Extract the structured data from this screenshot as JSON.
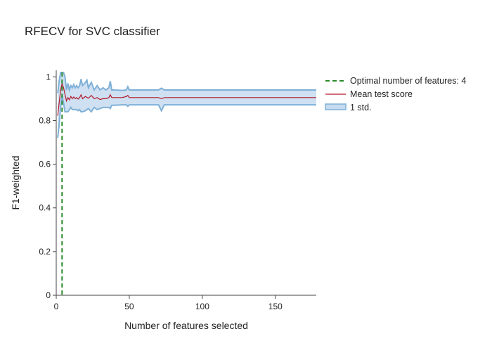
{
  "chart_data": {
    "type": "line",
    "title": "RFECV for SVC classifier",
    "xlabel": "Number of features selected",
    "ylabel": "F1-weighted",
    "xlim": [
      0,
      178
    ],
    "ylim": [
      0,
      1.03
    ],
    "xticks": [
      0,
      50,
      100,
      150
    ],
    "yticks": [
      0,
      0.2,
      0.4,
      0.6,
      0.8,
      1
    ],
    "grid": false,
    "legend_position": "top-right outside",
    "optimal_n_features": 4,
    "series": [
      {
        "name": "Mean test score",
        "color": "#b2182b",
        "points": [
          [
            1,
            0.822
          ],
          [
            2,
            0.88
          ],
          [
            3,
            0.94
          ],
          [
            4,
            0.968
          ],
          [
            5,
            0.95
          ],
          [
            6,
            0.92
          ],
          [
            7,
            0.89
          ],
          [
            8,
            0.905
          ],
          [
            9,
            0.895
          ],
          [
            10,
            0.91
          ],
          [
            11,
            0.9
          ],
          [
            12,
            0.908
          ],
          [
            13,
            0.9
          ],
          [
            14,
            0.905
          ],
          [
            15,
            0.898
          ],
          [
            16,
            0.905
          ],
          [
            17,
            0.918
          ],
          [
            18,
            0.9
          ],
          [
            20,
            0.91
          ],
          [
            22,
            0.902
          ],
          [
            24,
            0.915
          ],
          [
            26,
            0.9
          ],
          [
            28,
            0.905
          ],
          [
            30,
            0.896
          ],
          [
            32,
            0.9
          ],
          [
            34,
            0.9
          ],
          [
            36,
            0.905
          ],
          [
            37,
            0.918
          ],
          [
            38,
            0.905
          ],
          [
            40,
            0.905
          ],
          [
            45,
            0.905
          ],
          [
            48,
            0.91
          ],
          [
            49,
            0.915
          ],
          [
            50,
            0.905
          ],
          [
            60,
            0.905
          ],
          [
            70,
            0.905
          ],
          [
            72,
            0.9
          ],
          [
            74,
            0.905
          ],
          [
            100,
            0.905
          ],
          [
            150,
            0.905
          ],
          [
            178,
            0.905
          ]
        ]
      },
      {
        "name": "1 std.",
        "color": "#7fb0d8",
        "fill": "#c6dbef",
        "upper": [
          [
            1,
            0.925
          ],
          [
            2,
            0.98
          ],
          [
            3,
            1.02
          ],
          [
            4,
            1.02
          ],
          [
            5,
            1.02
          ],
          [
            6,
            1.0
          ],
          [
            7,
            0.94
          ],
          [
            8,
            0.97
          ],
          [
            9,
            0.94
          ],
          [
            10,
            0.96
          ],
          [
            11,
            0.95
          ],
          [
            12,
            0.965
          ],
          [
            13,
            0.95
          ],
          [
            14,
            0.96
          ],
          [
            15,
            0.95
          ],
          [
            16,
            0.96
          ],
          [
            17,
            0.99
          ],
          [
            18,
            0.96
          ],
          [
            20,
            0.975
          ],
          [
            21,
            0.985
          ],
          [
            22,
            0.95
          ],
          [
            24,
            0.975
          ],
          [
            26,
            0.94
          ],
          [
            28,
            0.96
          ],
          [
            30,
            0.94
          ],
          [
            32,
            0.95
          ],
          [
            34,
            0.94
          ],
          [
            36,
            0.95
          ],
          [
            37,
            0.98
          ],
          [
            38,
            0.94
          ],
          [
            40,
            0.94
          ],
          [
            45,
            0.938
          ],
          [
            48,
            0.94
          ],
          [
            49,
            0.955
          ],
          [
            50,
            0.94
          ],
          [
            60,
            0.94
          ],
          [
            70,
            0.94
          ],
          [
            72,
            0.948
          ],
          [
            74,
            0.94
          ],
          [
            100,
            0.94
          ],
          [
            150,
            0.94
          ],
          [
            178,
            0.94
          ]
        ],
        "lower": [
          [
            1,
            0.72
          ],
          [
            2,
            0.78
          ],
          [
            3,
            0.86
          ],
          [
            4,
            0.915
          ],
          [
            5,
            0.88
          ],
          [
            6,
            0.84
          ],
          [
            7,
            0.84
          ],
          [
            8,
            0.84
          ],
          [
            9,
            0.85
          ],
          [
            10,
            0.86
          ],
          [
            11,
            0.85
          ],
          [
            12,
            0.85
          ],
          [
            13,
            0.85
          ],
          [
            14,
            0.85
          ],
          [
            15,
            0.845
          ],
          [
            16,
            0.85
          ],
          [
            17,
            0.84
          ],
          [
            18,
            0.84
          ],
          [
            20,
            0.845
          ],
          [
            22,
            0.855
          ],
          [
            24,
            0.84
          ],
          [
            26,
            0.86
          ],
          [
            28,
            0.85
          ],
          [
            30,
            0.855
          ],
          [
            32,
            0.86
          ],
          [
            34,
            0.86
          ],
          [
            36,
            0.86
          ],
          [
            37,
            0.855
          ],
          [
            38,
            0.87
          ],
          [
            40,
            0.87
          ],
          [
            45,
            0.872
          ],
          [
            48,
            0.872
          ],
          [
            49,
            0.865
          ],
          [
            50,
            0.872
          ],
          [
            60,
            0.872
          ],
          [
            70,
            0.872
          ],
          [
            72,
            0.845
          ],
          [
            74,
            0.872
          ],
          [
            100,
            0.872
          ],
          [
            150,
            0.872
          ],
          [
            178,
            0.872
          ]
        ]
      },
      {
        "name": "Optimal number of features: 4",
        "color": "#2a8a2a",
        "x": 4,
        "style": "dashed"
      }
    ]
  }
}
